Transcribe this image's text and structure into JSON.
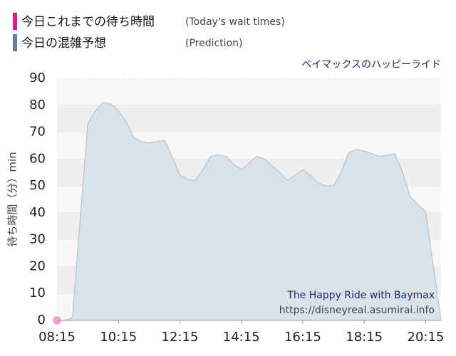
{
  "chart_data": {
    "type": "area",
    "subtitle": "ベイマックスのハッピーライド",
    "y_label": "待ち時間（分）min",
    "annotations": [
      "The Happy Ride with Baymax",
      "https://disneyreal.asumirai.info"
    ],
    "x": [
      "08:15",
      "08:30",
      "08:45",
      "09:00",
      "09:15",
      "09:30",
      "09:45",
      "10:00",
      "10:15",
      "10:30",
      "10:45",
      "11:00",
      "11:15",
      "11:30",
      "11:45",
      "12:00",
      "12:15",
      "12:30",
      "12:45",
      "13:00",
      "13:15",
      "13:30",
      "13:45",
      "14:00",
      "14:15",
      "14:30",
      "14:45",
      "15:00",
      "15:15",
      "15:30",
      "15:45",
      "16:00",
      "16:15",
      "16:30",
      "16:45",
      "17:00",
      "17:15",
      "17:30",
      "17:45",
      "18:00",
      "18:15",
      "18:30",
      "18:45",
      "19:00",
      "19:15",
      "19:30",
      "19:45",
      "20:00",
      "20:15",
      "20:30",
      "20:45"
    ],
    "series": [
      {
        "name": "今日これまでの待ち時間",
        "name_note": "(Today's wait times)",
        "color": "#e8168a",
        "kind": "point",
        "values": [
          0,
          null,
          null,
          null,
          null,
          null,
          null,
          null,
          null,
          null,
          null,
          null,
          null,
          null,
          null,
          null,
          null,
          null,
          null,
          null,
          null,
          null,
          null,
          null,
          null,
          null,
          null,
          null,
          null,
          null,
          null,
          null,
          null,
          null,
          null,
          null,
          null,
          null,
          null,
          null,
          null,
          null,
          null,
          null,
          null,
          null,
          null,
          null,
          null,
          null,
          null
        ]
      },
      {
        "name": "今日の混雑予想",
        "name_note": "(Prediction)",
        "color": "#6a7fa0",
        "kind": "area",
        "values": [
          0,
          0,
          1,
          37,
          73,
          78,
          81,
          80.5,
          78,
          74,
          68,
          66.5,
          66,
          66.5,
          67,
          61,
          54,
          52.5,
          52,
          56,
          61,
          61.5,
          61,
          58,
          56,
          58.5,
          61,
          60,
          57.5,
          55,
          52,
          54,
          56,
          54,
          51,
          50,
          50,
          55,
          62.5,
          63.5,
          63,
          62,
          61,
          61.5,
          62,
          55,
          46,
          43,
          40.5,
          20,
          0
        ]
      }
    ],
    "xlim": [
      "08:15",
      "20:45"
    ],
    "xticks": [
      "08:15",
      "10:15",
      "12:15",
      "14:15",
      "16:15",
      "18:15",
      "20:15"
    ],
    "ylim": [
      0,
      90
    ],
    "yticks": [
      0,
      10,
      20,
      30,
      40,
      50,
      60,
      70,
      80,
      90
    ],
    "grid": true
  }
}
